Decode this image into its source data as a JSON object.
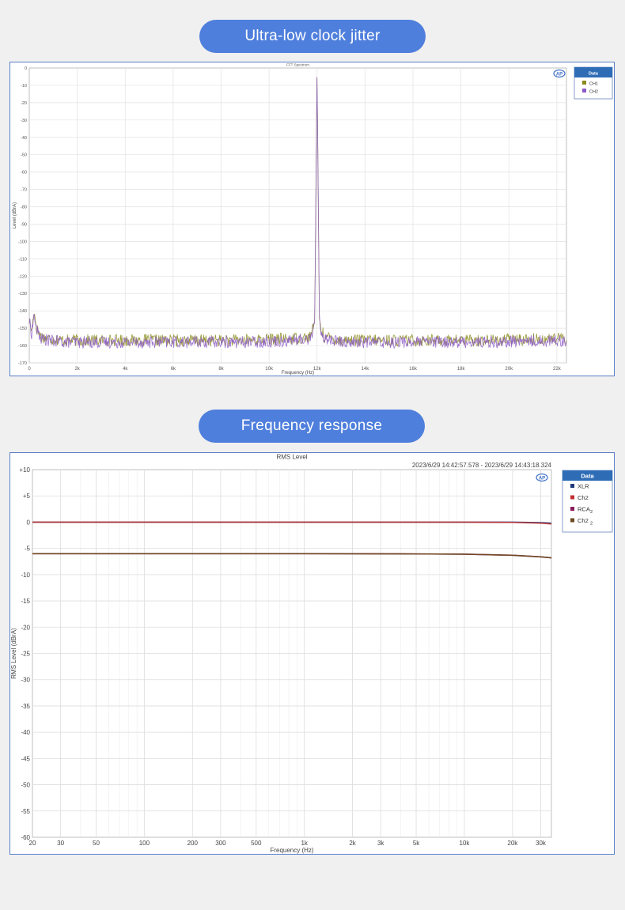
{
  "sections": [
    {
      "heading": "Ultra-low clock jitter"
    },
    {
      "heading": "Frequency response"
    }
  ],
  "chart_data": [
    {
      "type": "line",
      "title": "FFT Spectrum",
      "xlabel": "Frequency (Hz)",
      "ylabel": "Level (dBrA)",
      "xlim": [
        0,
        22400
      ],
      "ylim": [
        -170,
        0
      ],
      "x_scale": "linear",
      "x_ticks": [
        0,
        2000,
        4000,
        6000,
        8000,
        10000,
        12000,
        14000,
        16000,
        18000,
        20000,
        22000
      ],
      "x_tick_labels": [
        "0",
        "2k",
        "4k",
        "6k",
        "8k",
        "10k",
        "12k",
        "14k",
        "16k",
        "18k",
        "20k",
        "22k"
      ],
      "y_ticks": [
        0,
        -10,
        -20,
        -30,
        -40,
        -50,
        -60,
        -70,
        -80,
        -90,
        -100,
        -110,
        -120,
        -130,
        -140,
        -150,
        -160,
        -170
      ],
      "y_tick_labels": [
        "0",
        "-10",
        "-20",
        "-30",
        "-40",
        "-50",
        "-60",
        "-70",
        "-80",
        "-90",
        "-100",
        "-110",
        "-120",
        "-130",
        "-140",
        "-150",
        "-160",
        "-170"
      ],
      "grid": true,
      "logo_icon": "ap-logo-icon",
      "legend": {
        "title": "Data",
        "position": "right"
      },
      "series": [
        {
          "name": "CH1",
          "color": "#8a8a1a",
          "noise_floor": -157,
          "x": [
            0,
            100,
            200,
            300,
            500,
            800,
            1500,
            3000,
            6000,
            9000,
            11000,
            11700,
            11900,
            12000,
            12100,
            12300,
            13000,
            16000,
            19000,
            22400
          ],
          "y": [
            -145,
            -152,
            -140,
            -150,
            -155,
            -156,
            -157,
            -157,
            -157,
            -157,
            -156,
            -155,
            -148,
            0,
            -148,
            -155,
            -157,
            -157,
            -157,
            -156
          ]
        },
        {
          "name": "CH2",
          "color": "#8c5ac8",
          "noise_floor": -158,
          "x": [
            0,
            100,
            200,
            300,
            500,
            800,
            1500,
            3000,
            6000,
            9000,
            11000,
            11700,
            11900,
            12000,
            12100,
            12300,
            13000,
            16000,
            19000,
            22400
          ],
          "y": [
            -146,
            -153,
            -142,
            -151,
            -156,
            -157,
            -158,
            -158,
            -158,
            -158,
            -157,
            -156,
            -149,
            0,
            -149,
            -156,
            -158,
            -158,
            -158,
            -157
          ]
        }
      ]
    },
    {
      "type": "line",
      "title": "RMS Level",
      "timestamp": "2023/6/29 14:42:57.578 -  2023/6/29 14:43:18.324",
      "xlabel": "Frequency (Hz)",
      "ylabel": "RMS Level (dBrA)",
      "xlim": [
        20,
        35000
      ],
      "ylim": [
        -60,
        10
      ],
      "x_scale": "log",
      "x_ticks": [
        20,
        30,
        50,
        100,
        200,
        300,
        500,
        1000,
        2000,
        3000,
        5000,
        10000,
        20000,
        30000
      ],
      "x_tick_labels": [
        "20",
        "30",
        "50",
        "100",
        "200",
        "300",
        "500",
        "1k",
        "2k",
        "3k",
        "5k",
        "10k",
        "20k",
        "30k"
      ],
      "y_ticks": [
        10,
        5,
        0,
        -5,
        -10,
        -15,
        -20,
        -25,
        -30,
        -35,
        -40,
        -45,
        -50,
        -55,
        -60
      ],
      "y_tick_labels": [
        "+10",
        "+5",
        "0",
        "-5",
        "-10",
        "-15",
        "-20",
        "-25",
        "-30",
        "-35",
        "-40",
        "-45",
        "-50",
        "-55",
        "-60"
      ],
      "grid": true,
      "logo_icon": "ap-logo-icon",
      "legend": {
        "title": "Data",
        "position": "right"
      },
      "series": [
        {
          "name": "XLR",
          "subscript": "",
          "color": "#1f3a78",
          "x": [
            20,
            100,
            1000,
            10000,
            20000,
            30000,
            35000
          ],
          "y": [
            0,
            0,
            0,
            0,
            0,
            -0.1,
            -0.2
          ]
        },
        {
          "name": "Ch2",
          "subscript": "",
          "color": "#c03030",
          "x": [
            20,
            100,
            1000,
            10000,
            20000,
            30000,
            35000
          ],
          "y": [
            0,
            0,
            0,
            0,
            -0.05,
            -0.2,
            -0.35
          ]
        },
        {
          "name": "RCA",
          "subscript": "2",
          "color": "#8a1a5a",
          "x": [
            20,
            100,
            1000,
            5000,
            10000,
            20000,
            30000,
            35000
          ],
          "y": [
            -6,
            -6,
            -6,
            -6.05,
            -6.1,
            -6.3,
            -6.6,
            -6.8
          ]
        },
        {
          "name": "Ch2",
          "subscript": "2",
          "color": "#6b4a1e",
          "x": [
            20,
            100,
            1000,
            5000,
            10000,
            20000,
            30000,
            35000
          ],
          "y": [
            -6,
            -6,
            -6,
            -6.05,
            -6.1,
            -6.3,
            -6.6,
            -6.8
          ]
        }
      ]
    }
  ]
}
